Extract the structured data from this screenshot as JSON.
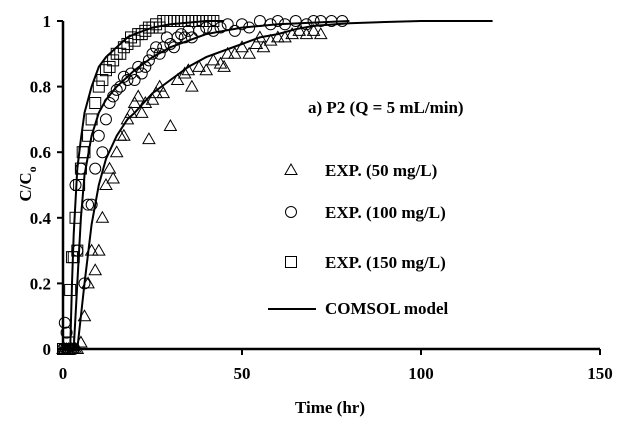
{
  "chart_data": {
    "type": "scatter",
    "title": "a) P2 (Q = 5 mL/min)",
    "xlabel": "Time (hr)",
    "ylabel": "C/C",
    "ylabel_subscript": "o",
    "xlim": [
      0,
      150
    ],
    "ylim": [
      0,
      1
    ],
    "xticks": [
      "0",
      "50",
      "100",
      "150"
    ],
    "yticks": [
      "0",
      "0.2",
      "0.4",
      "0.6",
      "0.8",
      "1"
    ],
    "grid": false,
    "legend_position": "right",
    "series": [
      {
        "name": "EXP. (50 mg/L)",
        "marker": "triangle",
        "points": [
          [
            0,
            0
          ],
          [
            0.5,
            0
          ],
          [
            1,
            0
          ],
          [
            1.5,
            0
          ],
          [
            2,
            0
          ],
          [
            2.5,
            0
          ],
          [
            3,
            0
          ],
          [
            3.5,
            0
          ],
          [
            4,
            0
          ],
          [
            5,
            0.02
          ],
          [
            6,
            0.1
          ],
          [
            7,
            0.2
          ],
          [
            8,
            0.3
          ],
          [
            9,
            0.24
          ],
          [
            10,
            0.3
          ],
          [
            11,
            0.4
          ],
          [
            12,
            0.5
          ],
          [
            13,
            0.55
          ],
          [
            14,
            0.52
          ],
          [
            15,
            0.6
          ],
          [
            16,
            0.65
          ],
          [
            17,
            0.65
          ],
          [
            18,
            0.7
          ],
          [
            19,
            0.72
          ],
          [
            20,
            0.75
          ],
          [
            21,
            0.77
          ],
          [
            22,
            0.72
          ],
          [
            23,
            0.75
          ],
          [
            24,
            0.64
          ],
          [
            25,
            0.76
          ],
          [
            26,
            0.78
          ],
          [
            27,
            0.8
          ],
          [
            28,
            0.78
          ],
          [
            30,
            0.68
          ],
          [
            32,
            0.82
          ],
          [
            34,
            0.84
          ],
          [
            35,
            0.85
          ],
          [
            36,
            0.8
          ],
          [
            38,
            0.86
          ],
          [
            40,
            0.85
          ],
          [
            42,
            0.88
          ],
          [
            44,
            0.87
          ],
          [
            45,
            0.86
          ],
          [
            46,
            0.9
          ],
          [
            48,
            0.9
          ],
          [
            50,
            0.92
          ],
          [
            52,
            0.9
          ],
          [
            54,
            0.93
          ],
          [
            55,
            0.95
          ],
          [
            56,
            0.92
          ],
          [
            58,
            0.94
          ],
          [
            60,
            0.95
          ],
          [
            62,
            0.95
          ],
          [
            64,
            0.96
          ],
          [
            66,
            0.97
          ],
          [
            68,
            0.96
          ],
          [
            70,
            0.97
          ],
          [
            72,
            0.96
          ]
        ]
      },
      {
        "name": "EXP. (100 mg/L)",
        "marker": "circle",
        "points": [
          [
            0,
            0
          ],
          [
            0.5,
            0.08
          ],
          [
            1,
            0.05
          ],
          [
            1.5,
            0
          ],
          [
            2,
            0
          ],
          [
            2.5,
            0
          ],
          [
            3,
            0
          ],
          [
            3.5,
            0.5
          ],
          [
            4,
            0.3
          ],
          [
            5,
            0.55
          ],
          [
            6,
            0.2
          ],
          [
            7,
            0.44
          ],
          [
            8,
            0.44
          ],
          [
            9,
            0.55
          ],
          [
            10,
            0.65
          ],
          [
            11,
            0.6
          ],
          [
            12,
            0.7
          ],
          [
            13,
            0.75
          ],
          [
            14,
            0.77
          ],
          [
            15,
            0.79
          ],
          [
            16,
            0.8
          ],
          [
            17,
            0.83
          ],
          [
            18,
            0.82
          ],
          [
            19,
            0.84
          ],
          [
            20,
            0.82
          ],
          [
            21,
            0.86
          ],
          [
            22,
            0.84
          ],
          [
            23,
            0.86
          ],
          [
            24,
            0.88
          ],
          [
            25,
            0.9
          ],
          [
            26,
            0.92
          ],
          [
            27,
            0.9
          ],
          [
            28,
            0.92
          ],
          [
            29,
            0.95
          ],
          [
            30,
            0.93
          ],
          [
            31,
            0.92
          ],
          [
            32,
            0.95
          ],
          [
            33,
            0.96
          ],
          [
            34,
            0.95
          ],
          [
            35,
            0.97
          ],
          [
            36,
            0.95
          ],
          [
            38,
            0.97
          ],
          [
            40,
            0.98
          ],
          [
            42,
            0.97
          ],
          [
            44,
            0.98
          ],
          [
            46,
            0.99
          ],
          [
            48,
            0.97
          ],
          [
            50,
            0.99
          ],
          [
            52,
            0.98
          ],
          [
            55,
            1
          ],
          [
            58,
            0.99
          ],
          [
            60,
            1
          ],
          [
            62,
            0.99
          ],
          [
            65,
            1
          ],
          [
            68,
            0.99
          ],
          [
            70,
            1
          ],
          [
            72,
            1
          ],
          [
            75,
            1
          ],
          [
            78,
            1
          ]
        ]
      },
      {
        "name": "EXP. (150 mg/L)",
        "marker": "square",
        "points": [
          [
            0,
            0
          ],
          [
            0.5,
            0
          ],
          [
            1,
            0
          ],
          [
            1.5,
            0.02
          ],
          [
            2,
            0.18
          ],
          [
            2.5,
            0.28
          ],
          [
            3,
            0.28
          ],
          [
            3.5,
            0.4
          ],
          [
            4,
            0.3
          ],
          [
            4.5,
            0.5
          ],
          [
            5,
            0.55
          ],
          [
            5.5,
            0.6
          ],
          [
            6,
            0.6
          ],
          [
            7,
            0.65
          ],
          [
            8,
            0.7
          ],
          [
            9,
            0.75
          ],
          [
            10,
            0.8
          ],
          [
            11,
            0.82
          ],
          [
            12,
            0.85
          ],
          [
            13,
            0.86
          ],
          [
            14,
            0.88
          ],
          [
            15,
            0.9
          ],
          [
            16,
            0.9
          ],
          [
            17,
            0.92
          ],
          [
            18,
            0.93
          ],
          [
            19,
            0.95
          ],
          [
            20,
            0.94
          ],
          [
            21,
            0.96
          ],
          [
            22,
            0.96
          ],
          [
            23,
            0.97
          ],
          [
            24,
            0.98
          ],
          [
            25,
            0.98
          ],
          [
            26,
            0.99
          ],
          [
            27,
            0.98
          ],
          [
            28,
            1
          ],
          [
            29,
            1
          ],
          [
            30,
            1
          ],
          [
            31,
            1
          ],
          [
            32,
            1
          ],
          [
            33,
            1
          ],
          [
            34,
            1
          ],
          [
            35,
            1
          ],
          [
            36,
            1
          ],
          [
            37,
            1
          ],
          [
            38,
            1
          ],
          [
            39,
            1
          ],
          [
            40,
            1
          ],
          [
            41,
            1
          ],
          [
            42,
            1
          ]
        ]
      },
      {
        "name": "COMSOL model",
        "marker": "line",
        "curves": [
          [
            [
              4,
              0
            ],
            [
              5,
              0.1
            ],
            [
              6,
              0.2
            ],
            [
              8,
              0.38
            ],
            [
              10,
              0.5
            ],
            [
              12,
              0.58
            ],
            [
              15,
              0.65
            ],
            [
              18,
              0.7
            ],
            [
              20,
              0.72
            ],
            [
              25,
              0.78
            ],
            [
              30,
              0.82
            ],
            [
              35,
              0.86
            ],
            [
              40,
              0.89
            ],
            [
              45,
              0.91
            ],
            [
              50,
              0.93
            ],
            [
              55,
              0.95
            ],
            [
              60,
              0.96
            ],
            [
              65,
              0.975
            ],
            [
              70,
              0.985
            ],
            [
              80,
              0.993
            ],
            [
              90,
              0.997
            ],
            [
              100,
              1
            ],
            [
              120,
              1
            ]
          ],
          [
            [
              3,
              0
            ],
            [
              4,
              0.2
            ],
            [
              5,
              0.4
            ],
            [
              6,
              0.53
            ],
            [
              8,
              0.65
            ],
            [
              10,
              0.72
            ],
            [
              12,
              0.76
            ],
            [
              15,
              0.8
            ],
            [
              18,
              0.83
            ],
            [
              20,
              0.85
            ],
            [
              25,
              0.89
            ],
            [
              30,
              0.92
            ],
            [
              35,
              0.94
            ],
            [
              40,
              0.96
            ],
            [
              45,
              0.97
            ],
            [
              50,
              0.98
            ],
            [
              60,
              0.99
            ],
            [
              70,
              0.995
            ],
            [
              80,
              1
            ]
          ],
          [
            [
              2,
              0
            ],
            [
              2.5,
              0.2
            ],
            [
              3,
              0.35
            ],
            [
              4,
              0.55
            ],
            [
              5,
              0.64
            ],
            [
              6,
              0.72
            ],
            [
              8,
              0.8
            ],
            [
              10,
              0.86
            ],
            [
              12,
              0.89
            ],
            [
              15,
              0.92
            ],
            [
              18,
              0.95
            ],
            [
              20,
              0.96
            ],
            [
              25,
              0.98
            ],
            [
              30,
              0.99
            ],
            [
              35,
              0.995
            ],
            [
              40,
              1
            ],
            [
              45,
              1
            ]
          ]
        ]
      }
    ]
  }
}
